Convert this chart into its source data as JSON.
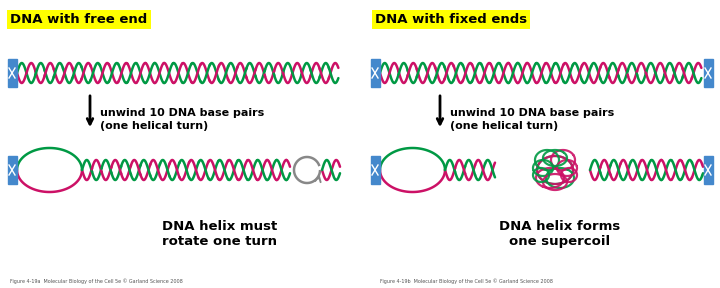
{
  "left_title": "DNA with free end",
  "right_title": "DNA with fixed ends",
  "title_bg": "#FFFF00",
  "title_fontsize": 9.5,
  "arrow_text_line1": "unwind 10 DNA base pairs",
  "arrow_text_line2": "(one helical turn)",
  "left_bottom_text": "DNA helix must\nrotate one turn",
  "right_bottom_text": "DNA helix forms\none supercoil",
  "color_green": "#009944",
  "color_pink": "#cc1166",
  "color_blue": "#4488cc",
  "color_grey": "#888888",
  "bg_color": "#ffffff"
}
